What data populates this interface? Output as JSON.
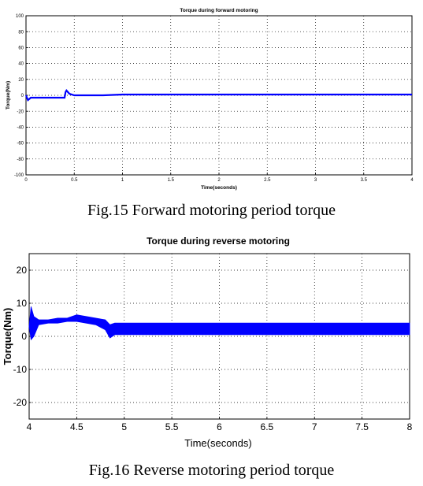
{
  "chart_data": [
    {
      "type": "line",
      "title": "Torque during forward motoring",
      "xlabel": "Time(seconds)",
      "ylabel": "Torque(Nm)",
      "xlim": [
        0,
        4
      ],
      "ylim": [
        -100,
        100
      ],
      "xticks": [
        0,
        0.5,
        1,
        1.5,
        2,
        2.5,
        3,
        3.5,
        4
      ],
      "xtick_labels": [
        "0",
        "0.5",
        "1",
        "1.5",
        "2",
        "2.5",
        "3",
        "3.5",
        "4"
      ],
      "yticks": [
        100,
        80,
        60,
        40,
        20,
        0,
        -20,
        -40,
        -60,
        -80,
        -100
      ],
      "ytick_labels": [
        "100",
        "80",
        "60",
        "40",
        "20",
        "0",
        "-20",
        "-40",
        "-60",
        "-80",
        "-100"
      ],
      "grid": true,
      "line_color": "#0000ff",
      "series": [
        {
          "x": [
            0,
            0.02,
            0.05,
            0.1,
            0.2,
            0.3,
            0.4,
            0.41,
            0.42,
            0.45,
            0.5,
            0.6,
            0.8,
            1.0,
            1.5,
            2.0,
            2.5,
            3.0,
            3.5,
            4.0
          ],
          "y": [
            0,
            -6,
            -3,
            -3,
            -3,
            -3,
            -3,
            4,
            6,
            2,
            0,
            0,
            0,
            1,
            1,
            1,
            1,
            1,
            1,
            1
          ]
        }
      ]
    },
    {
      "type": "line",
      "title": "Torque during reverse motoring",
      "xlabel": "Time(seconds)",
      "ylabel": "Torque(Nm)",
      "xlim": [
        4,
        8
      ],
      "ylim": [
        -25,
        25
      ],
      "xticks": [
        4,
        4.5,
        5,
        5.5,
        6,
        6.5,
        7,
        7.5,
        8
      ],
      "xtick_labels": [
        "4",
        "4.5",
        "5",
        "5.5",
        "6",
        "6.5",
        "7",
        "7.5",
        "8"
      ],
      "yticks": [
        20,
        10,
        0,
        -10,
        -20
      ],
      "ytick_labels": [
        "20",
        "10",
        "0",
        "-10",
        "-20"
      ],
      "grid": true,
      "line_color": "#0000ff",
      "series": [
        {
          "x": [
            4.0,
            4.02,
            4.05,
            4.1,
            4.2,
            4.3,
            4.4,
            4.5,
            4.6,
            4.7,
            4.8,
            4.85,
            4.9,
            5.0,
            6.0,
            7.0,
            8.0
          ],
          "y_min": [
            3,
            -1,
            0,
            3.5,
            4,
            4,
            4.5,
            4.5,
            4,
            3.5,
            2,
            -0.5,
            0.5,
            0.5,
            0.5,
            0.5,
            0.5
          ],
          "y_max": [
            3,
            9,
            6,
            5,
            5,
            5.5,
            5.5,
            6.5,
            6,
            5.5,
            5,
            3.5,
            4,
            4,
            4,
            4,
            4
          ]
        }
      ]
    }
  ],
  "captions": {
    "fig15": "Fig.15 Forward motoring period torque",
    "fig16": "Fig.16 Reverse motoring period torque"
  }
}
